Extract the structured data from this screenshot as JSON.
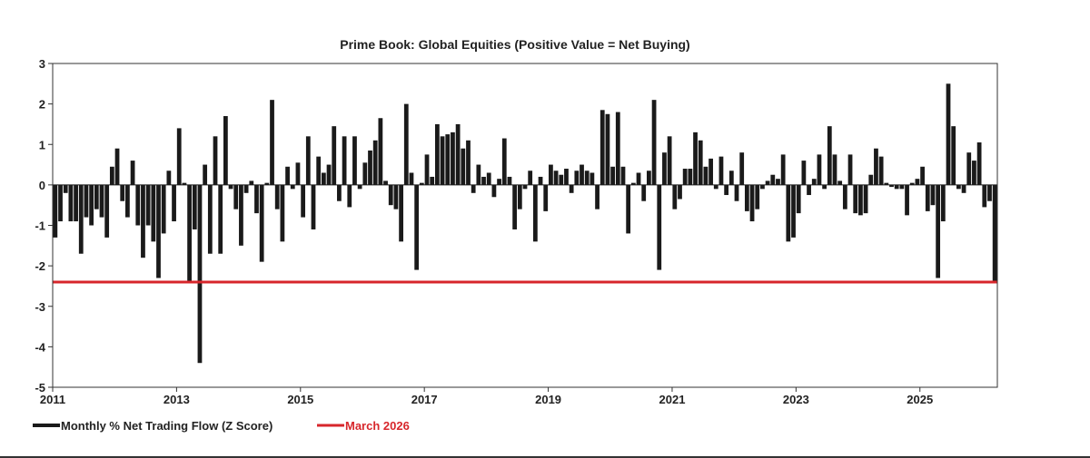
{
  "chart_data": {
    "type": "bar",
    "title": "Prime Book: Global Equities (Positive Value = Net Buying)",
    "xlabel": "",
    "ylabel": "",
    "xlim": [
      2011,
      2026.25
    ],
    "ylim": [
      -5,
      3
    ],
    "yticks": [
      3,
      2,
      1,
      0,
      -1,
      -2,
      -3,
      -4,
      -5
    ],
    "xticks": [
      2011,
      2013,
      2015,
      2017,
      2019,
      2021,
      2023,
      2025
    ],
    "grid": false,
    "legend_position": "bottom-left",
    "start_month": "2011-01",
    "series": [
      {
        "name": "Monthly % Net Trading Flow (Z Score)",
        "color": "#1a1a1a",
        "values": [
          -1.3,
          -0.9,
          -0.2,
          -0.9,
          -0.9,
          -1.7,
          -0.8,
          -1.0,
          -0.6,
          -0.8,
          -1.3,
          0.45,
          0.9,
          -0.4,
          -0.8,
          0.6,
          -1.0,
          -1.8,
          -1.0,
          -1.4,
          -2.3,
          -1.2,
          0.35,
          -0.9,
          1.4,
          0.05,
          -2.4,
          -1.1,
          -4.4,
          0.5,
          -1.7,
          1.2,
          -1.7,
          1.7,
          -0.1,
          -0.6,
          -1.5,
          -0.2,
          0.1,
          -0.7,
          -1.9,
          0.05,
          2.1,
          -0.6,
          -1.4,
          0.45,
          -0.1,
          0.55,
          -0.8,
          1.2,
          -1.1,
          0.7,
          0.3,
          0.5,
          1.45,
          -0.4,
          1.2,
          -0.55,
          1.2,
          -0.1,
          0.55,
          0.85,
          1.1,
          1.65,
          0.1,
          -0.5,
          -0.6,
          -1.4,
          2.0,
          0.3,
          -2.1,
          0.05,
          0.75,
          0.2,
          1.5,
          1.2,
          1.25,
          1.3,
          1.5,
          0.9,
          1.1,
          -0.2,
          0.5,
          0.2,
          0.3,
          -0.3,
          0.15,
          1.15,
          0.2,
          -1.1,
          -0.6,
          -0.1,
          0.35,
          -1.4,
          0.2,
          -0.65,
          0.5,
          0.35,
          0.25,
          0.4,
          -0.2,
          0.35,
          0.5,
          0.35,
          0.3,
          -0.6,
          1.85,
          1.75,
          0.45,
          1.8,
          0.45,
          -1.2,
          0.05,
          0.3,
          -0.4,
          0.35,
          2.1,
          -2.1,
          0.8,
          1.2,
          -0.6,
          -0.35,
          0.4,
          0.4,
          1.3,
          1.1,
          0.45,
          0.65,
          -0.1,
          0.7,
          -0.25,
          0.35,
          -0.4,
          0.8,
          -0.65,
          -0.9,
          -0.6,
          -0.1,
          0.1,
          0.25,
          0.15,
          0.75,
          -1.4,
          -1.3,
          -0.7,
          0.6,
          -0.25,
          0.15,
          0.75,
          -0.1,
          1.45,
          0.75,
          0.1,
          -0.6,
          0.75,
          -0.7,
          -0.75,
          -0.7,
          0.25,
          0.9,
          0.7,
          0.05,
          -0.05,
          -0.1,
          -0.1,
          -0.75,
          0.05,
          0.15,
          0.45,
          -0.65,
          -0.5,
          -2.3,
          -0.9,
          2.5,
          1.45,
          -0.1,
          -0.2,
          0.8,
          0.6,
          1.05,
          -0.55,
          -0.4,
          -2.4
        ]
      },
      {
        "name": "March 2026",
        "color": "#d7262b",
        "type": "hline",
        "value": -2.4
      }
    ]
  }
}
